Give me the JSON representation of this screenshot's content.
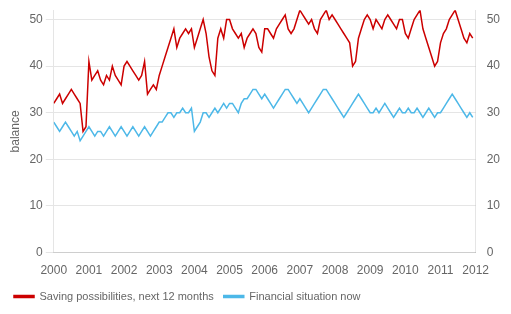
{
  "chart_data": {
    "type": "line",
    "ylabel": "balance",
    "x": [
      2000,
      2000.0833333333333,
      2000.1666666666667,
      2000.25,
      2000.3333333333333,
      2000.4166666666667,
      2000.5,
      2000.5833333333333,
      2000.6666666666667,
      2000.75,
      2000.8333333333333,
      2000.9166666666667,
      2001,
      2001.0833333333333,
      2001.1666666666667,
      2001.25,
      2001.3333333333333,
      2001.4166666666667,
      2001.5,
      2001.5833333333333,
      2001.6666666666667,
      2001.75,
      2001.8333333333333,
      2001.9166666666667,
      2002,
      2002.0833333333333,
      2002.1666666666667,
      2002.25,
      2002.3333333333333,
      2002.4166666666667,
      2002.5,
      2002.5833333333333,
      2002.6666666666667,
      2002.75,
      2002.8333333333333,
      2002.9166666666667,
      2003,
      2003.0833333333333,
      2003.1666666666667,
      2003.25,
      2003.3333333333333,
      2003.4166666666667,
      2003.5,
      2003.5833333333333,
      2003.6666666666667,
      2003.75,
      2003.8333333333333,
      2003.9166666666667,
      2004,
      2004.0833333333333,
      2004.1666666666667,
      2004.25,
      2004.3333333333333,
      2004.4166666666667,
      2004.5,
      2004.5833333333333,
      2004.6666666666667,
      2004.75,
      2004.8333333333333,
      2004.9166666666667,
      2005,
      2005.0833333333333,
      2005.1666666666667,
      2005.25,
      2005.3333333333333,
      2005.4166666666667,
      2005.5,
      2005.5833333333333,
      2005.6666666666667,
      2005.75,
      2005.8333333333333,
      2005.9166666666667,
      2006,
      2006.0833333333333,
      2006.1666666666667,
      2006.25,
      2006.3333333333333,
      2006.4166666666667,
      2006.5,
      2006.5833333333333,
      2006.6666666666667,
      2006.75,
      2006.8333333333333,
      2006.9166666666667,
      2007,
      2007.0833333333333,
      2007.1666666666667,
      2007.25,
      2007.3333333333333,
      2007.4166666666667,
      2007.5,
      2007.5833333333333,
      2007.6666666666667,
      2007.75,
      2007.8333333333333,
      2007.9166666666667,
      2008,
      2008.0833333333333,
      2008.1666666666667,
      2008.25,
      2008.3333333333333,
      2008.4166666666667,
      2008.5,
      2008.5833333333333,
      2008.6666666666667,
      2008.75,
      2008.8333333333333,
      2008.9166666666667,
      2009,
      2009.0833333333333,
      2009.1666666666667,
      2009.25,
      2009.3333333333333,
      2009.4166666666667,
      2009.5,
      2009.5833333333333,
      2009.6666666666667,
      2009.75,
      2009.8333333333333,
      2009.9166666666667,
      2010,
      2010.0833333333333,
      2010.1666666666667,
      2010.25,
      2010.3333333333333,
      2010.4166666666667,
      2010.5,
      2010.5833333333333,
      2010.6666666666667,
      2010.75,
      2010.8333333333333,
      2010.9166666666667,
      2011,
      2011.0833333333333,
      2011.1666666666667,
      2011.25,
      2011.3333333333333,
      2011.4166666666667,
      2011.5,
      2011.5833333333333,
      2011.6666666666667,
      2011.75,
      2011.8333333333333,
      2011.9166666666667
    ],
    "series": [
      {
        "name": "Saving possibilities, next 12 months",
        "color": "#cc0000",
        "values": [
          32,
          33,
          34,
          32,
          33,
          34,
          35,
          34,
          33,
          32,
          26,
          27,
          41,
          37,
          38,
          39,
          37,
          36,
          38,
          37,
          40,
          38,
          37,
          36,
          40,
          41,
          40,
          39,
          38,
          37,
          38,
          41,
          34,
          35,
          36,
          35,
          38,
          40,
          42,
          44,
          46,
          48,
          44,
          46,
          47,
          48,
          47,
          48,
          44,
          46,
          48,
          50,
          47,
          42,
          39,
          38,
          46,
          48,
          46,
          50,
          50,
          48,
          47,
          46,
          47,
          44,
          46,
          47,
          48,
          47,
          44,
          43,
          48,
          48,
          47,
          46,
          48,
          49,
          50,
          51,
          48,
          47,
          48,
          50,
          52,
          51,
          50,
          49,
          50,
          48,
          47,
          50,
          51,
          52,
          50,
          51,
          50,
          49,
          48,
          47,
          46,
          45,
          40,
          41,
          46,
          48,
          50,
          51,
          50,
          48,
          50,
          49,
          48,
          50,
          51,
          50,
          49,
          48,
          50,
          50,
          47,
          46,
          48,
          50,
          51,
          52,
          48,
          46,
          44,
          42,
          40,
          41,
          45,
          47,
          48,
          50,
          51,
          52,
          50,
          48,
          46,
          45,
          47,
          46
        ]
      },
      {
        "name": "Financial situation now",
        "color": "#4db8e8",
        "values": [
          28,
          27,
          26,
          27,
          28,
          27,
          26,
          25,
          26,
          24,
          25,
          26,
          27,
          26,
          25,
          26,
          26,
          25,
          26,
          27,
          26,
          25,
          26,
          27,
          26,
          25,
          26,
          27,
          26,
          25,
          26,
          27,
          26,
          25,
          26,
          27,
          28,
          28,
          29,
          30,
          30,
          29,
          30,
          30,
          31,
          30,
          30,
          31,
          26,
          27,
          28,
          30,
          30,
          29,
          30,
          31,
          30,
          31,
          32,
          31,
          32,
          32,
          31,
          30,
          32,
          33,
          33,
          34,
          35,
          35,
          34,
          33,
          34,
          33,
          32,
          31,
          32,
          33,
          34,
          35,
          35,
          34,
          33,
          32,
          33,
          32,
          31,
          30,
          31,
          32,
          33,
          34,
          35,
          35,
          34,
          33,
          32,
          31,
          30,
          29,
          30,
          31,
          32,
          33,
          34,
          33,
          32,
          31,
          30,
          30,
          31,
          30,
          31,
          32,
          31,
          30,
          29,
          30,
          31,
          30,
          30,
          31,
          30,
          30,
          31,
          30,
          29,
          30,
          31,
          30,
          29,
          30,
          30,
          31,
          32,
          33,
          34,
          33,
          32,
          31,
          30,
          29,
          30,
          29
        ]
      }
    ],
    "xlim": [
      2000,
      2012
    ],
    "xticks": [
      2000,
      2001,
      2002,
      2003,
      2004,
      2005,
      2006,
      2007,
      2008,
      2009,
      2010,
      2011,
      2012
    ],
    "ylim": [
      0,
      52
    ],
    "yticks": [
      0,
      10,
      20,
      30,
      40,
      50
    ],
    "y2lim": [
      0,
      52
    ],
    "y2ticks": [
      0,
      10,
      20,
      30,
      40,
      50
    ],
    "grid": "y",
    "legend": "lower left"
  }
}
